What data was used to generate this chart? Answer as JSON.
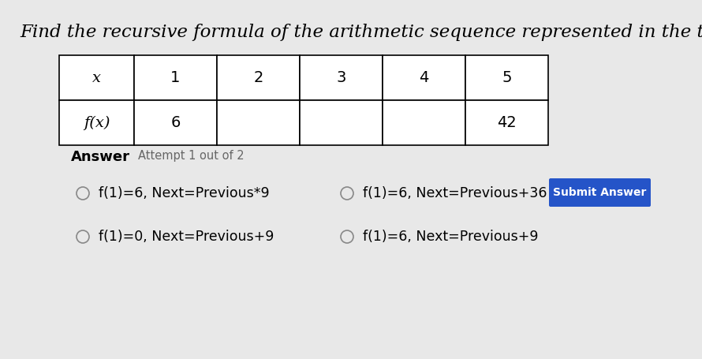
{
  "title": "Find the recursive formula of the arithmetic sequence represented in the table.",
  "title_fontsize": 16.5,
  "bg_color": "#e8e8e8",
  "table_x_headers": [
    "x",
    "1",
    "2",
    "3",
    "4",
    "5"
  ],
  "table_fx_headers": [
    "f(x)",
    "6",
    "",
    "",
    "",
    "42"
  ],
  "answer_label": "Answer",
  "attempt_label": "Attempt 1 out of 2",
  "options": [
    "f(1)=6, Next=Previous*9",
    "f(1)=6, Next=Previous+36",
    "f(1)=0, Next=Previous+9",
    "f(1)=6, Next=Previous+9"
  ],
  "submit_button_text": "Submit Answer",
  "submit_button_color": "#2554c8",
  "submit_button_text_color": "#ffffff",
  "circle_color": "#888888",
  "option_fontsize": 12.5,
  "answer_fontsize": 13,
  "table_fontsize": 14
}
